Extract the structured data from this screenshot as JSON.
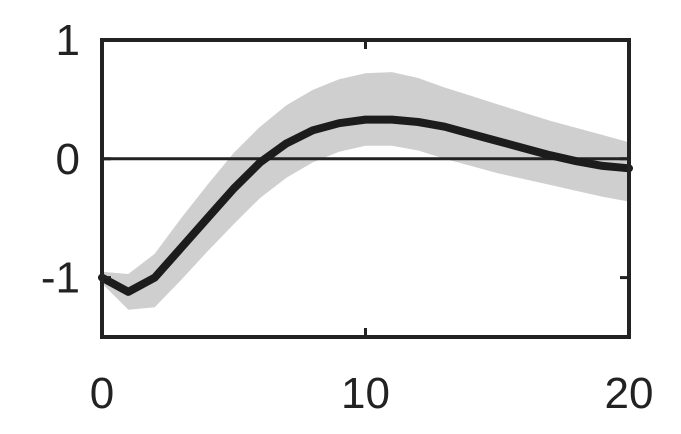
{
  "chart_data": {
    "type": "line",
    "title": "",
    "xlabel": "",
    "ylabel": "",
    "xlim": [
      0,
      20
    ],
    "ylim": [
      -1.5,
      1
    ],
    "x_ticks": [
      0,
      10,
      20
    ],
    "y_ticks": [
      -1,
      0,
      1
    ],
    "x_tick_labels": [
      "0",
      "10",
      "20"
    ],
    "y_tick_labels": [
      "-1",
      "0",
      "1"
    ],
    "grid": false,
    "reference_line": 0,
    "series": [
      {
        "x": [
          0,
          1,
          2,
          3,
          4,
          5,
          6,
          7,
          8,
          9,
          10,
          11,
          12,
          13,
          14,
          15,
          16,
          17,
          18,
          19,
          20
        ],
        "y": [
          -1.0,
          -1.12,
          -1.0,
          -0.75,
          -0.5,
          -0.25,
          -0.03,
          0.13,
          0.24,
          0.3,
          0.33,
          0.33,
          0.31,
          0.27,
          0.21,
          0.15,
          0.09,
          0.03,
          -0.02,
          -0.06,
          -0.08
        ],
        "lower": [
          -1.05,
          -1.27,
          -1.25,
          -1.02,
          -0.78,
          -0.55,
          -0.33,
          -0.16,
          -0.03,
          0.06,
          0.11,
          0.11,
          0.07,
          0.0,
          -0.06,
          -0.12,
          -0.17,
          -0.22,
          -0.27,
          -0.32,
          -0.36
        ],
        "upper": [
          -0.95,
          -0.97,
          -0.8,
          -0.5,
          -0.22,
          0.05,
          0.27,
          0.45,
          0.58,
          0.67,
          0.72,
          0.73,
          0.68,
          0.6,
          0.53,
          0.46,
          0.39,
          0.32,
          0.26,
          0.2,
          0.14
        ]
      }
    ],
    "colors": {
      "line": "#1c1c1c",
      "band": "#cfcfcf",
      "axis": "#222222",
      "zero_line": "#222222"
    }
  }
}
